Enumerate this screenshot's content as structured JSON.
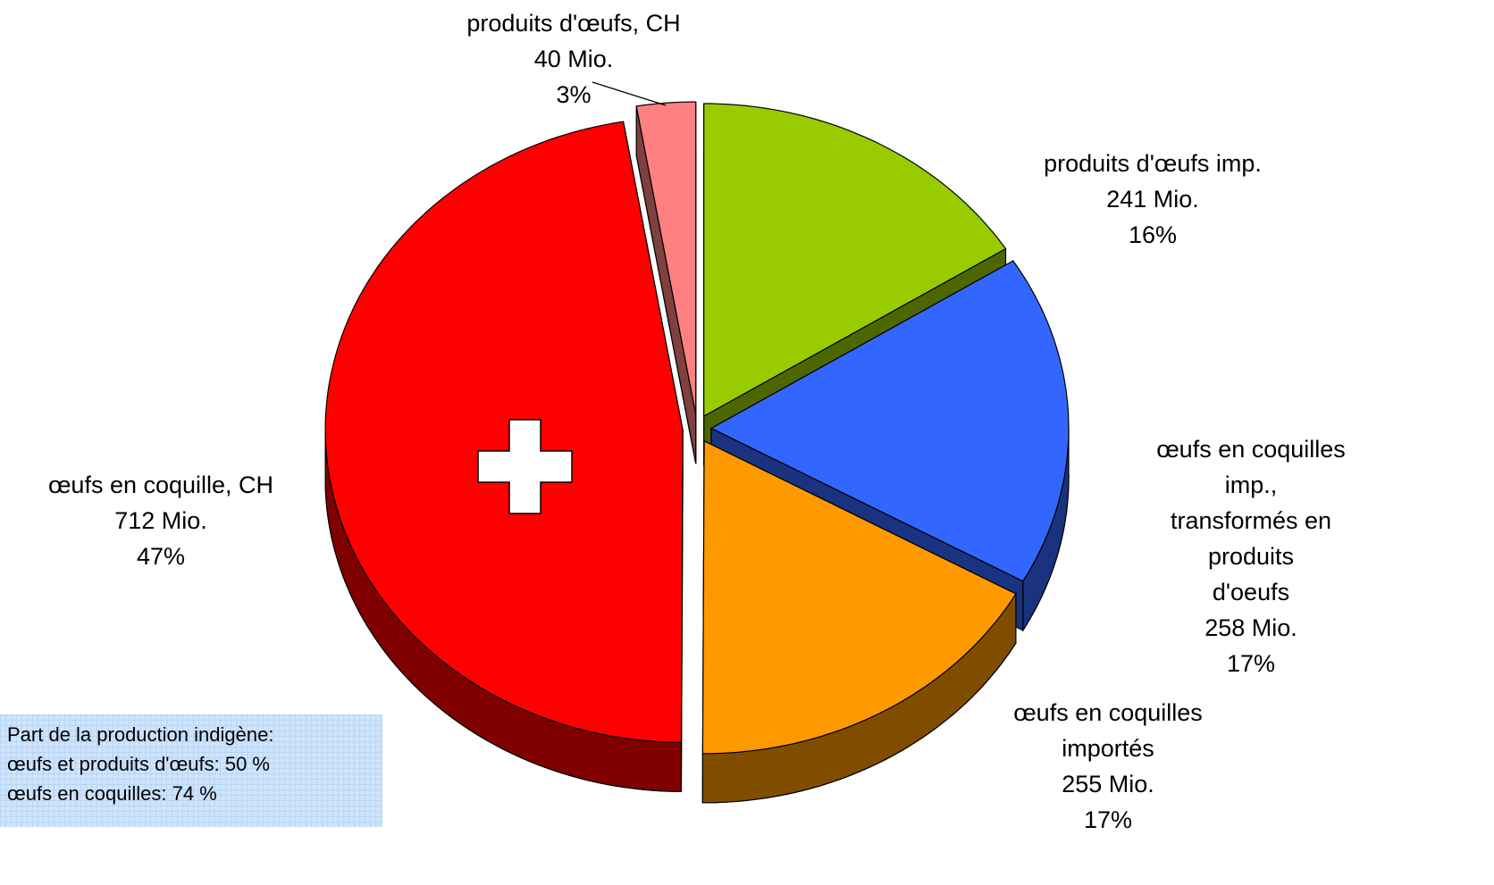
{
  "chart_data": {
    "type": "pie3d",
    "categories": [
      "produits d'œufs imp.",
      "œufs en coquilles imp.,\ntransformés en produits\nd'oeufs",
      "œufs en coquilles\nimportés",
      "œufs en coquille, CH",
      "produits d'œufs, CH"
    ],
    "values": [
      241,
      258,
      255,
      712,
      40
    ],
    "value_labels": [
      "241 Mio.",
      "258 Mio.",
      "255 Mio.",
      "712 Mio.",
      "40 Mio."
    ],
    "share_labels": [
      "16%",
      "17%",
      "17%",
      "47%",
      "3%"
    ],
    "colors": [
      "#99cc00",
      "#3366ff",
      "#ff9900",
      "#ff0000",
      "#ff8080"
    ],
    "note": [
      "Part de la production indigène:",
      "œufs et produits d'œufs: 50 %",
      "œufs en coquilles: 74 %"
    ]
  }
}
